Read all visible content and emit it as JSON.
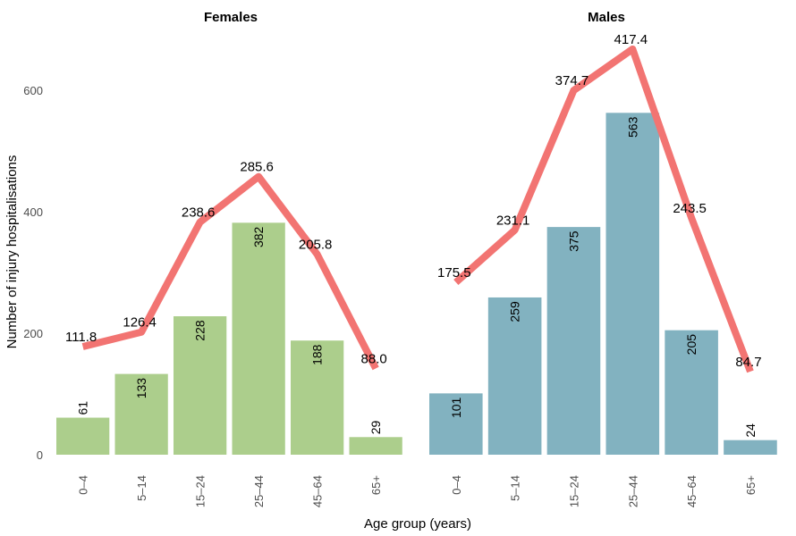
{
  "chart_data": {
    "type": "bar",
    "xlabel": "Age group (years)",
    "ylabel": "Number of injury hospitalisations",
    "ylim": [
      0,
      690
    ],
    "yticks": [
      0,
      200,
      400,
      600
    ],
    "grid": false,
    "legend": "none",
    "panels": [
      {
        "title": "Females",
        "categories": [
          "0–4",
          "5–14",
          "15–24",
          "25–44",
          "45–64",
          "65+"
        ],
        "bar_values": [
          61,
          133,
          228,
          382,
          188,
          29
        ],
        "bar_labels": [
          "61",
          "133",
          "228",
          "382",
          "188",
          "29"
        ],
        "line_labels": [
          "111.8",
          "126.4",
          "238.6",
          "285.6",
          "205.8",
          "88.0"
        ],
        "line_y_on_count_axis": [
          178,
          202,
          383,
          458,
          330,
          142
        ],
        "bar_color": "#acce8c",
        "line_color": "#f27472"
      },
      {
        "title": "Males",
        "categories": [
          "0–4",
          "5–14",
          "15–24",
          "25–44",
          "45–64",
          "65+"
        ],
        "bar_values": [
          101,
          259,
          375,
          563,
          205,
          24
        ],
        "bar_labels": [
          "101",
          "259",
          "375",
          "563",
          "205",
          "24"
        ],
        "line_labels": [
          "175.5",
          "231.1",
          "374.7",
          "417.4",
          "243.5",
          "84.7"
        ],
        "line_y_on_count_axis": [
          284,
          370,
          600,
          668,
          390,
          137
        ],
        "bar_color": "#82b2c0",
        "line_color": "#f27472"
      }
    ]
  }
}
